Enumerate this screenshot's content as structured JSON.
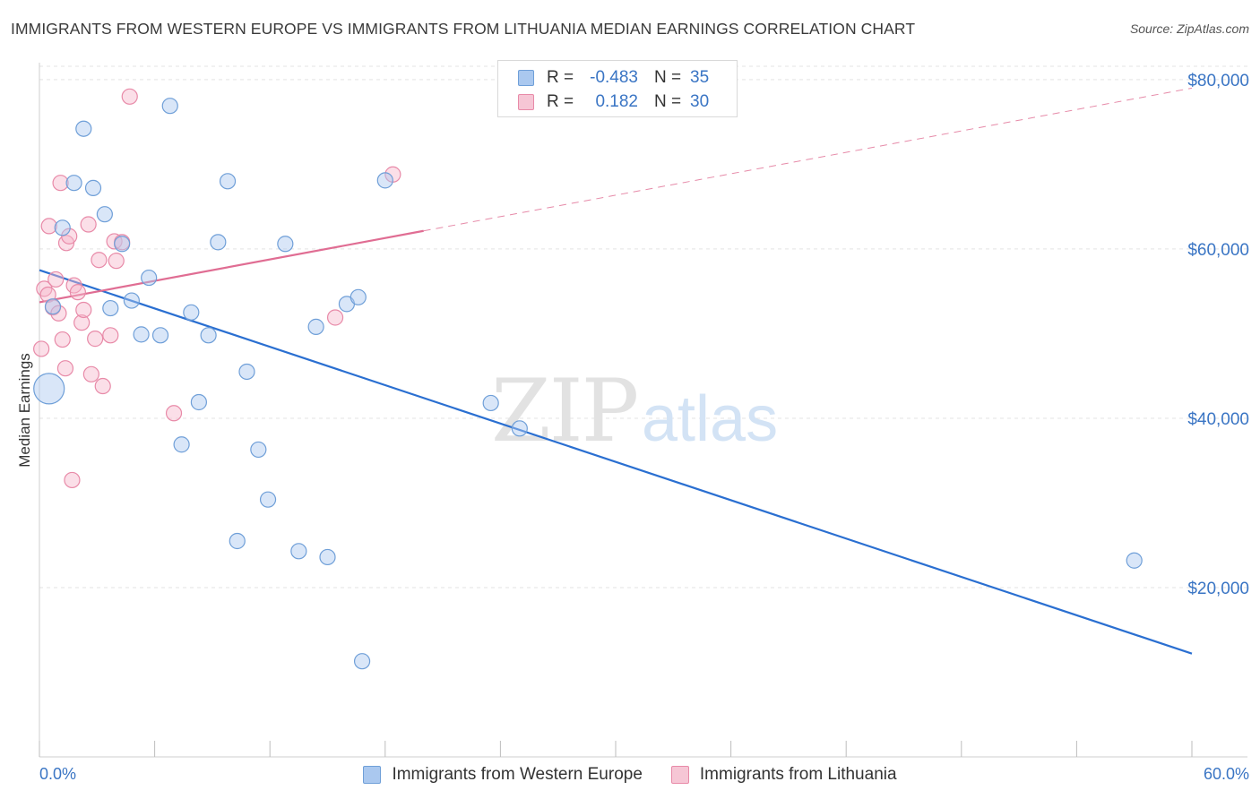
{
  "title": "IMMIGRANTS FROM WESTERN EUROPE VS IMMIGRANTS FROM LITHUANIA MEDIAN EARNINGS CORRELATION CHART",
  "source": "Source: ZipAtlas.com",
  "watermark": {
    "zip": "ZIP",
    "atlas": "atlas"
  },
  "legend": {
    "rows": [
      {
        "r_label": "R =",
        "r_value": "-0.483",
        "n_label": "N =",
        "n_value": "35"
      },
      {
        "r_label": "R =",
        "r_value": "0.182",
        "n_label": "N =",
        "n_value": "30"
      }
    ]
  },
  "colors": {
    "blue_fill": "#aac8ef",
    "blue_stroke": "#6f9fd8",
    "blue_line": "#2a6fd1",
    "pink_fill": "#f6b9cc",
    "pink_stroke": "#e88aa8",
    "pink_line": "#e06d93",
    "grid": "#e3e3e3",
    "axis_text": "#3a75c4"
  },
  "chart_data": {
    "type": "scatter",
    "title": "IMMIGRANTS FROM WESTERN EUROPE VS IMMIGRANTS FROM LITHUANIA MEDIAN EARNINGS CORRELATION CHART",
    "xlabel": "",
    "ylabel": "Median Earnings",
    "xlim": [
      0,
      60
    ],
    "ylim": [
      0,
      82000
    ],
    "x_tick_labels": [
      "0.0%",
      "60.0%"
    ],
    "y_ticks": [
      20000,
      40000,
      60000,
      80000
    ],
    "y_tick_labels": [
      "$20,000",
      "$40,000",
      "$60,000",
      "$80,000"
    ],
    "series": [
      {
        "name": "Immigrants from Western Europe",
        "color": "blue",
        "trend": {
          "x": [
            0,
            60
          ],
          "y": [
            57500,
            12200
          ],
          "dashed_from": null
        },
        "points": [
          {
            "x": 0.5,
            "y": 43500,
            "big": true
          },
          {
            "x": 0.7,
            "y": 53200
          },
          {
            "x": 1.2,
            "y": 62500
          },
          {
            "x": 1.8,
            "y": 67800
          },
          {
            "x": 2.3,
            "y": 74200
          },
          {
            "x": 2.8,
            "y": 67200
          },
          {
            "x": 3.4,
            "y": 64100
          },
          {
            "x": 3.7,
            "y": 53000
          },
          {
            "x": 4.3,
            "y": 60600
          },
          {
            "x": 4.8,
            "y": 53900
          },
          {
            "x": 5.3,
            "y": 49900
          },
          {
            "x": 5.7,
            "y": 56600
          },
          {
            "x": 6.3,
            "y": 49800
          },
          {
            "x": 6.8,
            "y": 76900
          },
          {
            "x": 7.4,
            "y": 36900
          },
          {
            "x": 7.9,
            "y": 52500
          },
          {
            "x": 8.3,
            "y": 41900
          },
          {
            "x": 8.8,
            "y": 49800
          },
          {
            "x": 9.3,
            "y": 60800
          },
          {
            "x": 9.8,
            "y": 68000
          },
          {
            "x": 10.3,
            "y": 25500
          },
          {
            "x": 10.8,
            "y": 45500
          },
          {
            "x": 11.4,
            "y": 36300
          },
          {
            "x": 11.9,
            "y": 30400
          },
          {
            "x": 12.8,
            "y": 60600
          },
          {
            "x": 13.5,
            "y": 24300
          },
          {
            "x": 14.4,
            "y": 50800
          },
          {
            "x": 15.0,
            "y": 23600
          },
          {
            "x": 16.0,
            "y": 53500
          },
          {
            "x": 16.6,
            "y": 54300
          },
          {
            "x": 16.8,
            "y": 11300
          },
          {
            "x": 18.0,
            "y": 68100
          },
          {
            "x": 23.5,
            "y": 41800
          },
          {
            "x": 25.0,
            "y": 38800
          },
          {
            "x": 57.0,
            "y": 23200
          }
        ]
      },
      {
        "name": "Immigrants from Lithuania",
        "color": "pink",
        "trend": {
          "x": [
            0,
            60
          ],
          "y": [
            53700,
            79000
          ],
          "dashed_from": 20
        },
        "points": [
          {
            "x": 0.1,
            "y": 48200
          },
          {
            "x": 0.25,
            "y": 55300
          },
          {
            "x": 0.45,
            "y": 54600
          },
          {
            "x": 0.5,
            "y": 62700
          },
          {
            "x": 0.7,
            "y": 53100
          },
          {
            "x": 0.85,
            "y": 56400
          },
          {
            "x": 1.0,
            "y": 52400
          },
          {
            "x": 1.1,
            "y": 67800
          },
          {
            "x": 1.2,
            "y": 49300
          },
          {
            "x": 1.35,
            "y": 45900
          },
          {
            "x": 1.4,
            "y": 60700
          },
          {
            "x": 1.55,
            "y": 61500
          },
          {
            "x": 1.7,
            "y": 32700
          },
          {
            "x": 1.8,
            "y": 55700
          },
          {
            "x": 2.0,
            "y": 54900
          },
          {
            "x": 2.2,
            "y": 51300
          },
          {
            "x": 2.3,
            "y": 52800
          },
          {
            "x": 2.55,
            "y": 62900
          },
          {
            "x": 2.7,
            "y": 45200
          },
          {
            "x": 2.9,
            "y": 49400
          },
          {
            "x": 3.1,
            "y": 58700
          },
          {
            "x": 3.3,
            "y": 43800
          },
          {
            "x": 3.7,
            "y": 49800
          },
          {
            "x": 3.9,
            "y": 60900
          },
          {
            "x": 4.0,
            "y": 58600
          },
          {
            "x": 4.3,
            "y": 60800
          },
          {
            "x": 4.7,
            "y": 78000
          },
          {
            "x": 7.0,
            "y": 40600
          },
          {
            "x": 15.4,
            "y": 51900
          },
          {
            "x": 18.4,
            "y": 68800
          }
        ]
      }
    ]
  }
}
